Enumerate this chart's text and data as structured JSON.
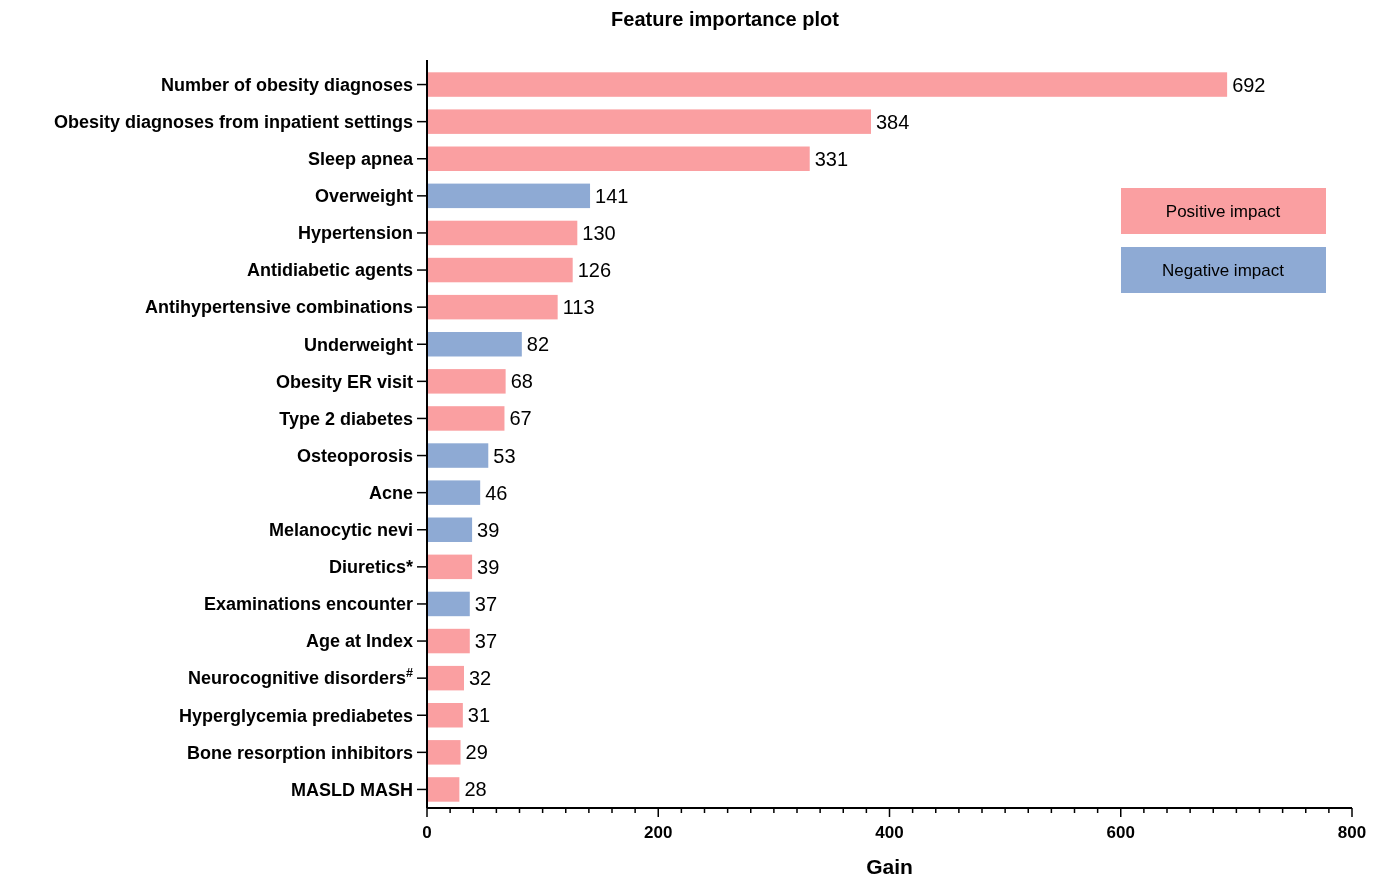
{
  "chart_data": {
    "type": "bar",
    "orientation": "horizontal",
    "title": "Feature importance plot",
    "xlabel": "Gain",
    "categories": [
      "Number of obesity diagnoses",
      "Obesity diagnoses from inpatient settings",
      "Sleep apnea",
      "Overweight",
      "Hypertension",
      "Antidiabetic agents",
      "Antihypertensive combinations",
      "Underweight",
      "Obesity ER visit",
      "Type 2 diabetes",
      "Osteoporosis",
      "Acne",
      "Melanocytic nevi",
      "Diuretics*",
      "Examinations encounter",
      "Age at Index",
      "Neurocognitive disorders$^{#}$",
      "Hyperglycemia prediabetes",
      "Bone resorption inhibitors",
      "MASLD MASH"
    ],
    "series": [
      {
        "name": "Positive impact",
        "color": "#fa9fa1",
        "values": [
          692,
          384,
          331,
          null,
          130,
          126,
          113,
          null,
          68,
          67,
          null,
          null,
          null,
          39,
          null,
          37,
          32,
          31,
          29,
          28
        ]
      },
      {
        "name": "Negative impact",
        "color": "#8eaad4",
        "values": [
          null,
          null,
          null,
          141,
          null,
          null,
          null,
          82,
          null,
          null,
          53,
          46,
          39,
          null,
          37,
          null,
          null,
          null,
          null,
          null
        ]
      }
    ],
    "xlim": [
      0,
      800
    ],
    "xticks": [
      0,
      {
        "value": 20,
        "label": null
      },
      {
        "value": 40,
        "label": null
      },
      {
        "value": 60,
        "label": null
      },
      {
        "value": 80,
        "label": null
      },
      {
        "value": 100,
        "label": null
      },
      {
        "value": 120,
        "label": null
      },
      {
        "value": 140,
        "label": null
      },
      {
        "value": 160,
        "label": null
      },
      {
        "value": 180,
        "label": null
      },
      200,
      {
        "value": 220,
        "label": null
      },
      {
        "value": 240,
        "label": null
      },
      {
        "value": 260,
        "label": null
      },
      {
        "value": 280,
        "label": null
      },
      {
        "value": 300,
        "label": null
      },
      {
        "value": 320,
        "label": null
      },
      {
        "value": 340,
        "label": null
      },
      {
        "value": 360,
        "label": null
      },
      {
        "value": 380,
        "label": null
      },
      400,
      {
        "value": 420,
        "label": null
      },
      {
        "value": 440,
        "label": null
      },
      {
        "value": 460,
        "label": null
      },
      {
        "value": 480,
        "label": null
      },
      {
        "value": 500,
        "label": null
      },
      {
        "value": 520,
        "label": null
      },
      {
        "value": 540,
        "label": null
      },
      {
        "value": 560,
        "label": null
      },
      {
        "value": 580,
        "label": null
      },
      600,
      {
        "value": 620,
        "label": null
      },
      {
        "value": 640,
        "label": null
      },
      {
        "value": 660,
        "label": null
      },
      {
        "value": 680,
        "label": null
      },
      {
        "value": 700,
        "label": null
      },
      {
        "value": 720,
        "label": null
      },
      {
        "value": 740,
        "label": null
      },
      {
        "value": 760,
        "label": null
      },
      {
        "value": 780,
        "label": null
      },
      800
    ],
    "data_labels": true,
    "legend": "top right",
    "grid": false
  }
}
